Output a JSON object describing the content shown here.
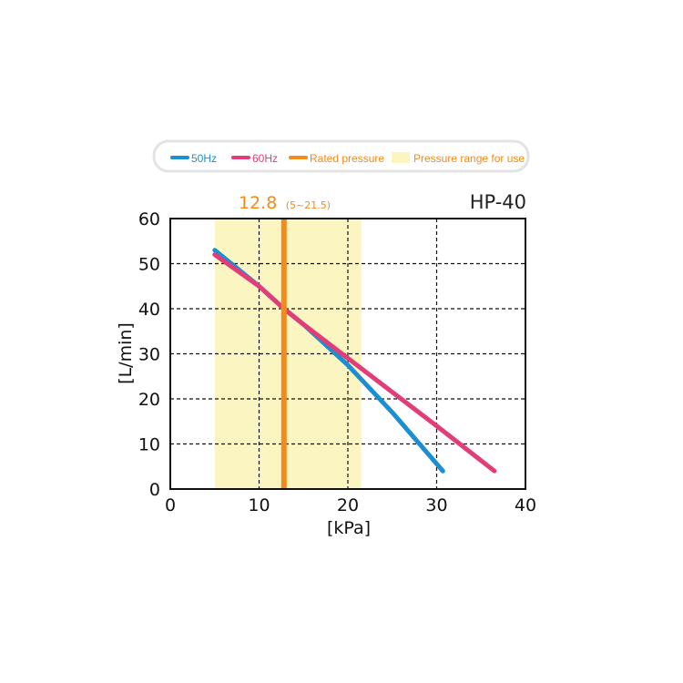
{
  "legend": {
    "items": [
      {
        "label": "50Hz",
        "color": "#1b8fd2",
        "kind": "line"
      },
      {
        "label": "60Hz",
        "color": "#e23d78",
        "kind": "line"
      },
      {
        "label": "Rated pressure",
        "color": "#f28a1c",
        "kind": "line"
      },
      {
        "label": "Pressure range for use",
        "color": "#fbf6c1",
        "kind": "box"
      }
    ]
  },
  "rated_pressure": {
    "value_text": "12.8",
    "range_text": "(5~21.5)",
    "value": 12.8,
    "range": [
      5,
      21.5
    ],
    "color": "#f28a1c",
    "range_color": "#fbf6c1"
  },
  "chart_data": {
    "type": "line",
    "title": "HP-40",
    "xlabel": "[kPa]",
    "ylabel": "[L/min]",
    "xlim": [
      0,
      40
    ],
    "ylim": [
      0,
      60
    ],
    "xticks": [
      "0",
      "10",
      "20",
      "30",
      "40"
    ],
    "yticks": [
      "0",
      "10",
      "20",
      "30",
      "40",
      "50",
      "60"
    ],
    "grid": true,
    "series": [
      {
        "name": "50Hz",
        "color": "#1b8fd2",
        "points": [
          [
            5,
            53
          ],
          [
            10,
            45
          ],
          [
            12.8,
            40
          ],
          [
            15,
            36.5
          ],
          [
            20,
            27.5
          ],
          [
            25,
            17
          ],
          [
            30.7,
            4
          ]
        ]
      },
      {
        "name": "60Hz",
        "color": "#e23d78",
        "points": [
          [
            5,
            52
          ],
          [
            10,
            45
          ],
          [
            12.8,
            40
          ],
          [
            15,
            36.5
          ],
          [
            20,
            29
          ],
          [
            25,
            21.5
          ],
          [
            30,
            14
          ],
          [
            36.5,
            4
          ]
        ]
      }
    ]
  }
}
